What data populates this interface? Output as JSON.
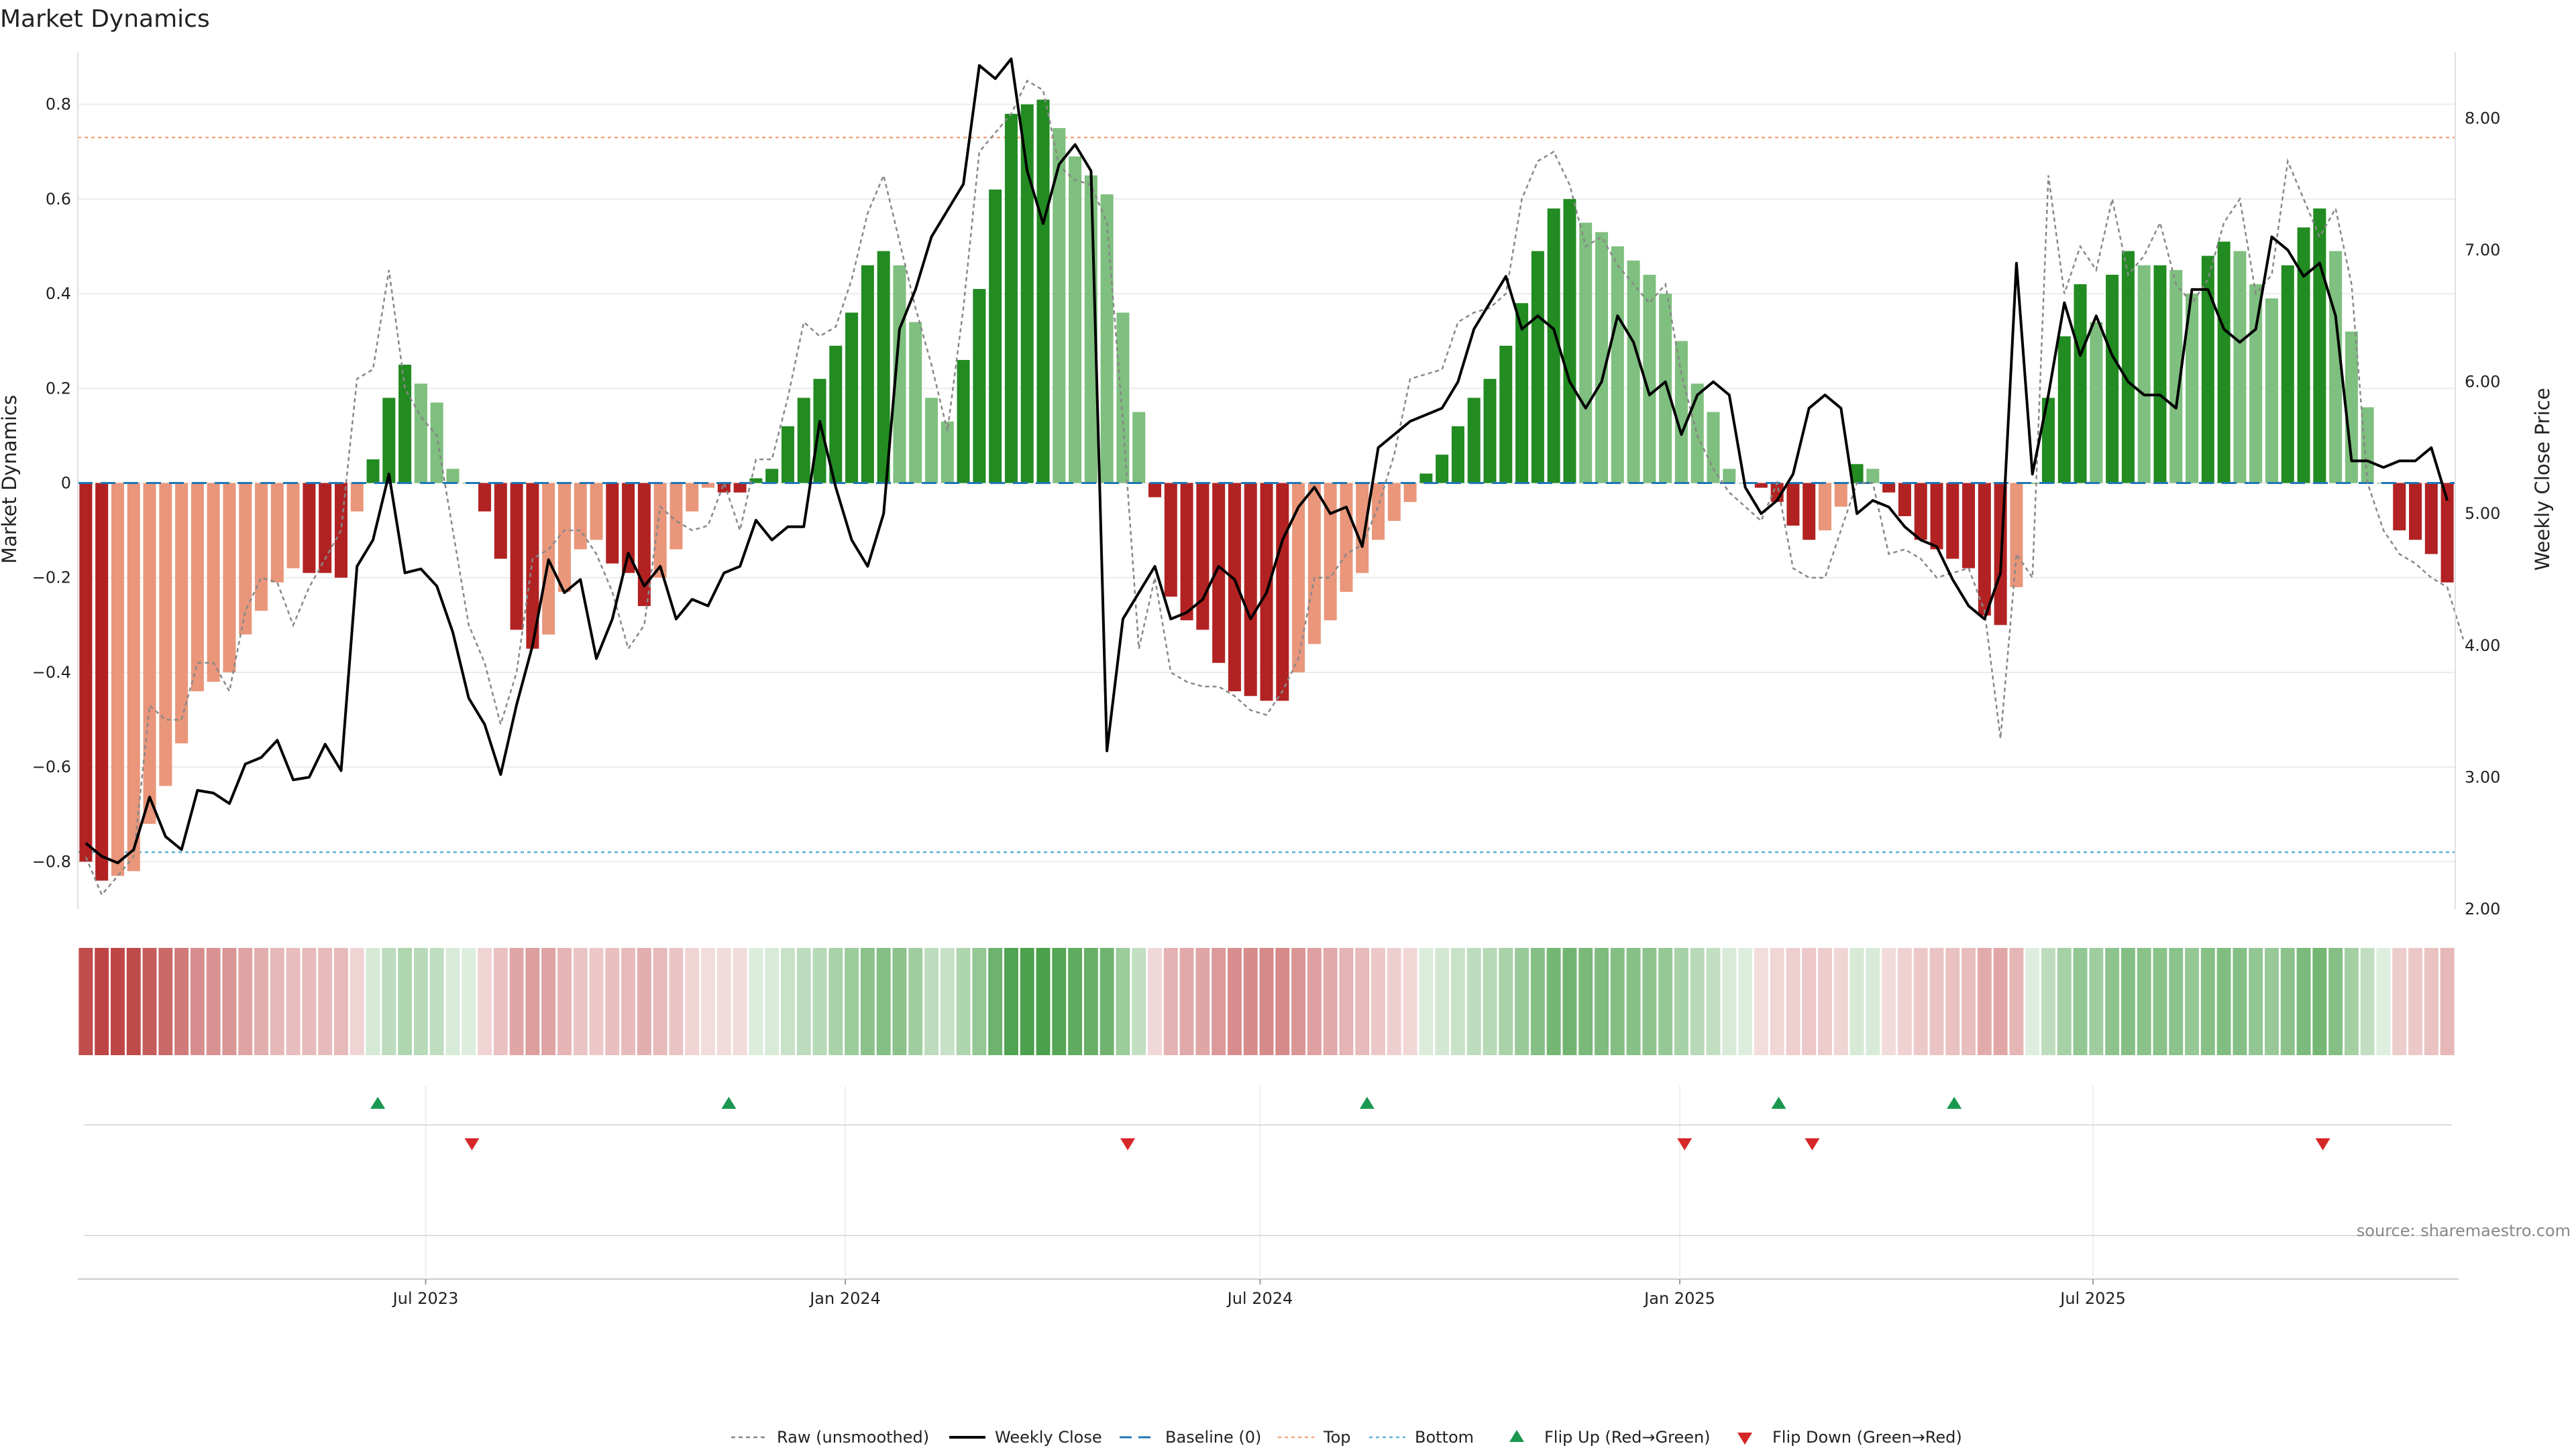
{
  "title": "Market Dynamics",
  "source": "source: sharemaestro.com",
  "colors": {
    "strong_green": "#228b22",
    "light_green": "#7fbf7f",
    "strong_red": "#b22222",
    "light_red": "#e9967a",
    "close": "#000000",
    "raw": "#888888",
    "baseline": "#1f77b4",
    "top": "#f4a582",
    "bottom": "#5ab4d6",
    "flip_up": "#1a9850",
    "flip_down": "#d62728"
  },
  "chart_data": {
    "type": "bar",
    "title": "Market Dynamics",
    "ylabel": "Market Dynamics",
    "y2label": "Weekly Close Price",
    "ylim": [
      -0.9,
      0.91
    ],
    "y2lim": [
      2.0,
      8.5
    ],
    "yticks": [
      "0.8",
      "0.6",
      "0.4",
      "0.2",
      "0",
      "−0.2",
      "−0.4",
      "−0.6",
      "−0.8"
    ],
    "yticks_values": [
      0.8,
      0.6,
      0.4,
      0.2,
      0,
      -0.2,
      -0.4,
      -0.6,
      -0.8
    ],
    "y2ticks": [
      "8.00",
      "7.00",
      "6.00",
      "5.00",
      "4.00",
      "3.00",
      "2.00"
    ],
    "y2ticks_values": [
      8,
      7,
      6,
      5,
      4,
      3,
      2
    ],
    "xticks": [
      "Jul 2023",
      "Jan 2024",
      "Jul 2024",
      "Jan 2025",
      "Jul 2025"
    ],
    "xticks_index": [
      21.3,
      47.6,
      73.6,
      99.9,
      125.8
    ],
    "top_level": 0.73,
    "bottom_level": -0.78,
    "baseline": 0,
    "smoothed": [
      -0.8,
      -0.84,
      -0.83,
      -0.82,
      -0.72,
      -0.64,
      -0.55,
      -0.44,
      -0.42,
      -0.4,
      -0.32,
      -0.27,
      -0.21,
      -0.18,
      -0.19,
      -0.19,
      -0.2,
      -0.06,
      0.05,
      0.18,
      0.25,
      0.21,
      0.17,
      0.03,
      0,
      -0.06,
      -0.16,
      -0.31,
      -0.35,
      -0.32,
      -0.23,
      -0.14,
      -0.12,
      -0.17,
      -0.19,
      -0.26,
      -0.2,
      -0.14,
      -0.06,
      -0.01,
      -0.02,
      -0.02,
      0.01,
      0.03,
      0.12,
      0.18,
      0.22,
      0.29,
      0.36,
      0.46,
      0.49,
      0.46,
      0.34,
      0.18,
      0.13,
      0.26,
      0.41,
      0.62,
      0.78,
      0.8,
      0.81,
      0.75,
      0.69,
      0.65,
      0.61,
      0.36,
      0.15,
      -0.03,
      -0.24,
      -0.29,
      -0.31,
      -0.38,
      -0.44,
      -0.45,
      -0.46,
      -0.46,
      -0.4,
      -0.34,
      -0.29,
      -0.23,
      -0.19,
      -0.12,
      -0.08,
      -0.04,
      0.02,
      0.06,
      0.12,
      0.18,
      0.22,
      0.29,
      0.38,
      0.49,
      0.58,
      0.6,
      0.55,
      0.53,
      0.5,
      0.47,
      0.44,
      0.4,
      0.3,
      0.21,
      0.15,
      0.03,
      0,
      -0.01,
      -0.04,
      -0.09,
      -0.12,
      -0.1,
      -0.05,
      0.04,
      0.03,
      -0.02,
      -0.07,
      -0.12,
      -0.14,
      -0.16,
      -0.18,
      -0.28,
      -0.3,
      -0.22,
      0,
      0.18,
      0.31,
      0.42,
      0.34,
      0.44,
      0.49,
      0.46,
      0.46,
      0.45,
      0.4,
      0.48,
      0.51,
      0.49,
      0.42,
      0.39,
      0.46,
      0.54,
      0.58,
      0.49,
      0.32,
      0.16,
      0,
      -0.1,
      -0.12,
      -0.15,
      -0.21
    ],
    "raw": [
      -0.79,
      -0.87,
      -0.83,
      -0.79,
      -0.47,
      -0.5,
      -0.5,
      -0.38,
      -0.38,
      -0.44,
      -0.27,
      -0.2,
      -0.21,
      -0.3,
      -0.22,
      -0.16,
      -0.1,
      0.22,
      0.24,
      0.45,
      0.2,
      0.14,
      0.1,
      -0.1,
      -0.3,
      -0.38,
      -0.51,
      -0.4,
      -0.16,
      -0.14,
      -0.1,
      -0.1,
      -0.15,
      -0.23,
      -0.35,
      -0.3,
      -0.05,
      -0.08,
      -0.1,
      -0.09,
      0,
      -0.1,
      0.05,
      0.05,
      0.18,
      0.34,
      0.31,
      0.33,
      0.43,
      0.57,
      0.65,
      0.51,
      0.37,
      0.25,
      0.11,
      0.37,
      0.7,
      0.74,
      0.78,
      0.85,
      0.83,
      0.67,
      0.64,
      0.63,
      0.55,
      0.13,
      -0.35,
      -0.2,
      -0.4,
      -0.42,
      -0.43,
      -0.43,
      -0.45,
      -0.48,
      -0.49,
      -0.44,
      -0.37,
      -0.2,
      -0.2,
      -0.15,
      -0.13,
      -0.05,
      0.06,
      0.22,
      0.23,
      0.24,
      0.34,
      0.36,
      0.37,
      0.4,
      0.6,
      0.68,
      0.7,
      0.63,
      0.5,
      0.52,
      0.46,
      0.42,
      0.38,
      0.42,
      0.23,
      0.1,
      0.03,
      -0.02,
      -0.05,
      -0.08,
      0,
      -0.18,
      -0.2,
      -0.2,
      -0.1,
      0,
      0.0,
      -0.15,
      -0.14,
      -0.16,
      -0.2,
      -0.19,
      -0.18,
      -0.27,
      -0.54,
      -0.15,
      -0.2,
      0.65,
      0.4,
      0.5,
      0.45,
      0.6,
      0.44,
      0.48,
      0.55,
      0.42,
      0.38,
      0.43,
      0.55,
      0.6,
      0.4,
      0.44,
      0.68,
      0.6,
      0.52,
      0.58,
      0.42,
      0.0,
      -0.1,
      -0.15,
      -0.17,
      -0.2,
      -0.22,
      -0.33
    ],
    "close": [
      2.5,
      2.4,
      2.35,
      2.45,
      2.85,
      2.55,
      2.45,
      2.9,
      2.88,
      2.8,
      3.1,
      3.15,
      3.28,
      2.98,
      3.0,
      3.25,
      3.05,
      4.6,
      4.8,
      5.3,
      4.55,
      4.58,
      4.45,
      4.1,
      3.6,
      3.4,
      3.02,
      3.55,
      4.0,
      4.65,
      4.4,
      4.5,
      3.9,
      4.2,
      4.7,
      4.45,
      4.6,
      4.2,
      4.35,
      4.3,
      4.55,
      4.6,
      4.95,
      4.8,
      4.9,
      4.9,
      5.7,
      5.2,
      4.8,
      4.6,
      5.0,
      6.4,
      6.7,
      7.1,
      7.3,
      7.5,
      8.4,
      8.3,
      8.45,
      7.6,
      7.2,
      7.65,
      7.8,
      7.6,
      3.2,
      4.2,
      4.4,
      4.6,
      4.2,
      4.25,
      4.35,
      4.6,
      4.5,
      4.2,
      4.4,
      4.8,
      5.05,
      5.2,
      5.0,
      5.05,
      4.75,
      5.5,
      5.6,
      5.7,
      5.75,
      5.8,
      6.0,
      6.4,
      6.6,
      6.8,
      6.4,
      6.5,
      6.4,
      6.0,
      5.8,
      6.0,
      6.5,
      6.3,
      5.9,
      6.0,
      5.6,
      5.9,
      6.0,
      5.9,
      5.2,
      5.0,
      5.1,
      5.3,
      5.8,
      5.9,
      5.8,
      5.0,
      5.1,
      5.05,
      4.9,
      4.8,
      4.75,
      4.5,
      4.3,
      4.2,
      4.55,
      6.9,
      5.3,
      5.9,
      6.6,
      6.2,
      6.5,
      6.2,
      6.0,
      5.9,
      5.9,
      5.8,
      6.7,
      6.7,
      6.4,
      6.3,
      6.4,
      7.1,
      7.0,
      6.8,
      6.9,
      6.5,
      5.4,
      5.4,
      5.35,
      5.4,
      5.4,
      5.5,
      5.1
    ]
  },
  "flips": {
    "up_index": [
      18.3,
      40.3,
      80.3,
      106.1,
      117.1
    ],
    "down_index": [
      24.2,
      65.3,
      100.2,
      108.2,
      140.2
    ]
  },
  "legend": [
    {
      "key": "raw",
      "label": "Raw (unsmoothed)"
    },
    {
      "key": "close",
      "label": "Weekly Close"
    },
    {
      "key": "baseline",
      "label": "Baseline (0)"
    },
    {
      "key": "top",
      "label": "Top"
    },
    {
      "key": "bottom",
      "label": "Bottom"
    },
    {
      "key": "flip_up",
      "label": "Flip Up (Red→Green)"
    },
    {
      "key": "flip_down",
      "label": "Flip Down (Green→Red)"
    }
  ]
}
